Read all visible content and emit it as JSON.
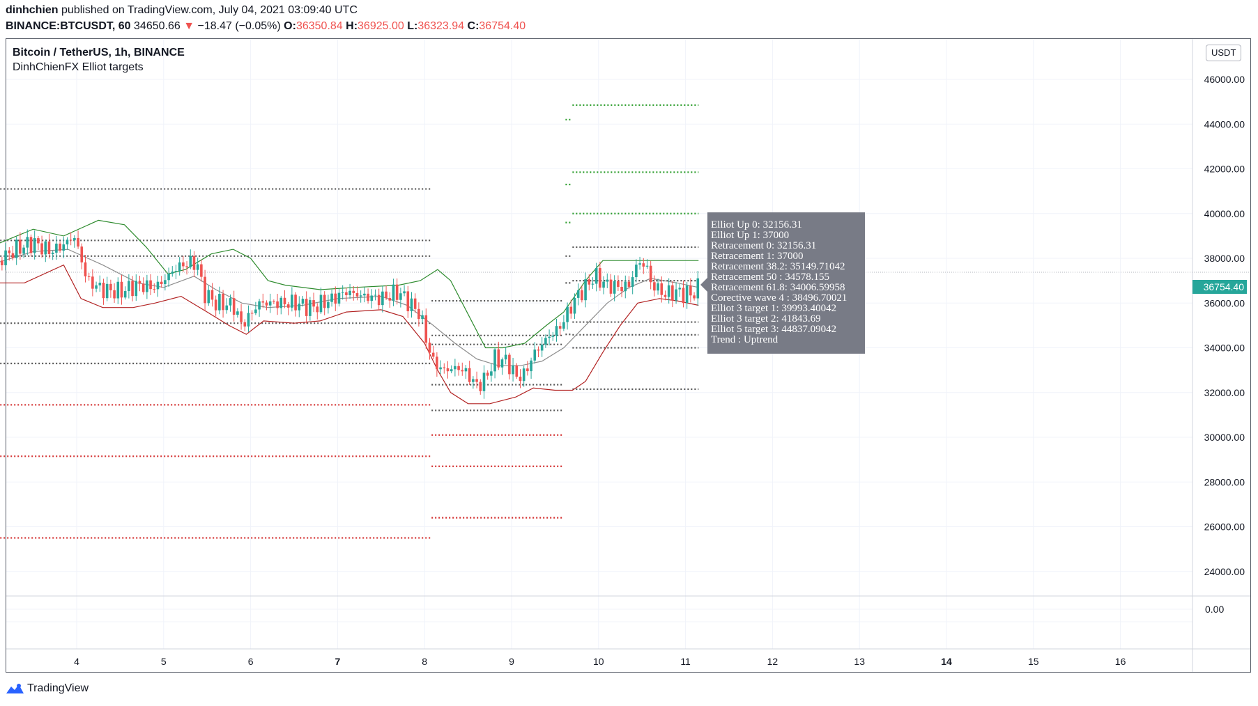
{
  "header": {
    "author": "dinhchien",
    "published": "published on TradingView.com, July 04, 2021 03:09:40 UTC",
    "symbol": "BINANCE:BTCUSDT, 60",
    "last": "34650.66",
    "change_arrow": "▼",
    "change": "−18.47 (−0.05%)",
    "o_label": "O:",
    "o_val": "36350.84",
    "h_label": "H:",
    "h_val": "36925.00",
    "l_label": "L:",
    "l_val": "36323.94",
    "c_label": "C:",
    "c_val": "36754.40"
  },
  "legend": {
    "title": "Bitcoin / TetherUS, 1h, BINANCE",
    "indicator": "DinhChienFX Elliot targets"
  },
  "unit_button": "USDT",
  "price_tag": "36754.40",
  "tooltip": [
    "Elliot Up 0: 32156.31",
    "Elliot Up 1: 37000",
    "Retracement 0: 32156.31",
    "Retracement 1: 37000",
    "Retracement 38.2: 35149.71042",
    "Retracement 50  : 34578.155",
    "Retracement 61.8: 34006.59958",
    "Corective wave 4 : 38496.70021",
    "Elliot 3 target 1: 39993.40042",
    "Elliot 3 target 2: 41843.69",
    "Elliot 5 target 3: 44837.09042",
    "Trend : Uptrend"
  ],
  "footer": {
    "brand": "TradingView"
  },
  "colors": {
    "up": "#26a69a",
    "down": "#ef5350",
    "bb_upper": "#2e8b2e",
    "bb_lower": "#b22222",
    "bb_basis": "#8c8c8c",
    "grid": "#f0f3fa",
    "level_gray": "#555555",
    "level_red": "#d32f2f",
    "level_green": "#2e9e2e"
  },
  "chart_data": {
    "type": "candlestick",
    "title": "Bitcoin / TetherUS, 1h, BINANCE",
    "ylim": [
      22800,
      47400
    ],
    "y_ticks": [
      46000,
      44000,
      42000,
      40000,
      38000,
      36000,
      34000,
      32000,
      30000,
      28000,
      26000,
      24000
    ],
    "sub_pane_tick": "0.00",
    "x_ticks": [
      {
        "label": "4",
        "day": 4
      },
      {
        "label": "5",
        "day": 5
      },
      {
        "label": "6",
        "day": 6
      },
      {
        "label": "7",
        "day": 7,
        "bold": true
      },
      {
        "label": "8",
        "day": 8
      },
      {
        "label": "9",
        "day": 9
      },
      {
        "label": "10",
        "day": 10
      },
      {
        "label": "11",
        "day": 11
      },
      {
        "label": "12",
        "day": 12
      },
      {
        "label": "13",
        "day": 13
      },
      {
        "label": "14",
        "day": 14,
        "bold": true
      },
      {
        "label": "15",
        "day": 15
      },
      {
        "label": "16",
        "day": 16
      }
    ],
    "price_path": [
      [
        3.1,
        37900
      ],
      [
        3.3,
        38400
      ],
      [
        3.5,
        38700
      ],
      [
        3.7,
        38300
      ],
      [
        3.85,
        38600
      ],
      [
        3.97,
        39000
      ],
      [
        4.05,
        38000
      ],
      [
        4.12,
        37000
      ],
      [
        4.3,
        36600
      ],
      [
        4.5,
        36500
      ],
      [
        4.7,
        36800
      ],
      [
        4.9,
        36700
      ],
      [
        5.0,
        37000
      ],
      [
        5.15,
        37600
      ],
      [
        5.3,
        37800
      ],
      [
        5.4,
        37700
      ],
      [
        5.45,
        36500
      ],
      [
        5.6,
        36000
      ],
      [
        5.8,
        35900
      ],
      [
        5.9,
        35000
      ],
      [
        6.0,
        35500
      ],
      [
        6.1,
        36000
      ],
      [
        6.3,
        36000
      ],
      [
        6.5,
        36000
      ],
      [
        6.7,
        35800
      ],
      [
        6.9,
        36100
      ],
      [
        7.1,
        36500
      ],
      [
        7.3,
        36300
      ],
      [
        7.5,
        36200
      ],
      [
        7.7,
        36500
      ],
      [
        7.85,
        35900
      ],
      [
        7.95,
        35500
      ],
      [
        8.05,
        33900
      ],
      [
        8.1,
        33400
      ],
      [
        8.2,
        33000
      ],
      [
        8.4,
        33100
      ],
      [
        8.5,
        32800
      ],
      [
        8.6,
        32300
      ],
      [
        8.7,
        32600
      ],
      [
        8.8,
        33500
      ],
      [
        8.95,
        33400
      ],
      [
        9.05,
        32700
      ],
      [
        9.15,
        32800
      ],
      [
        9.25,
        33700
      ],
      [
        9.4,
        34400
      ],
      [
        9.55,
        34900
      ],
      [
        9.65,
        35600
      ],
      [
        9.75,
        36300
      ],
      [
        9.85,
        36700
      ],
      [
        9.95,
        37200
      ],
      [
        10.1,
        36800
      ],
      [
        10.25,
        36700
      ],
      [
        10.35,
        36800
      ],
      [
        10.45,
        37800
      ],
      [
        10.55,
        37700
      ],
      [
        10.6,
        36900
      ],
      [
        10.75,
        36400
      ],
      [
        10.9,
        36500
      ],
      [
        11.0,
        36400
      ],
      [
        11.1,
        36450
      ],
      [
        11.15,
        36754.4
      ]
    ],
    "bb_upper": [
      [
        3.0,
        38500
      ],
      [
        3.5,
        39300
      ],
      [
        3.85,
        39000
      ],
      [
        4.25,
        39700
      ],
      [
        4.55,
        39500
      ],
      [
        4.8,
        38500
      ],
      [
        5.05,
        37300
      ],
      [
        5.25,
        37500
      ],
      [
        5.55,
        38200
      ],
      [
        5.8,
        38400
      ],
      [
        6.0,
        38000
      ],
      [
        6.2,
        37000
      ],
      [
        6.4,
        36800
      ],
      [
        6.8,
        36600
      ],
      [
        7.2,
        36700
      ],
      [
        7.7,
        36800
      ],
      [
        7.95,
        37000
      ],
      [
        8.15,
        37500
      ],
      [
        8.3,
        37000
      ],
      [
        8.5,
        35500
      ],
      [
        8.7,
        34000
      ],
      [
        8.9,
        34000
      ],
      [
        9.15,
        34200
      ],
      [
        9.4,
        35000
      ],
      [
        9.6,
        35600
      ],
      [
        9.85,
        37000
      ],
      [
        10.05,
        37900
      ],
      [
        10.3,
        37900
      ],
      [
        10.6,
        37900
      ],
      [
        11.15,
        37900
      ]
    ],
    "bb_basis": [
      [
        3.0,
        37700
      ],
      [
        3.5,
        38300
      ],
      [
        3.9,
        38400
      ],
      [
        4.3,
        37700
      ],
      [
        4.7,
        36900
      ],
      [
        5.0,
        36700
      ],
      [
        5.35,
        37200
      ],
      [
        5.6,
        36600
      ],
      [
        5.9,
        36000
      ],
      [
        6.2,
        35800
      ],
      [
        6.6,
        35900
      ],
      [
        7.0,
        36200
      ],
      [
        7.5,
        36300
      ],
      [
        7.8,
        35900
      ],
      [
        8.1,
        35000
      ],
      [
        8.35,
        34200
      ],
      [
        8.6,
        33500
      ],
      [
        8.85,
        33200
      ],
      [
        9.1,
        33200
      ],
      [
        9.35,
        33400
      ],
      [
        9.6,
        34000
      ],
      [
        9.85,
        35000
      ],
      [
        10.1,
        36000
      ],
      [
        10.35,
        36700
      ],
      [
        10.6,
        37100
      ],
      [
        10.9,
        36900
      ],
      [
        11.15,
        36700
      ]
    ],
    "bb_lower": [
      [
        3.0,
        36900
      ],
      [
        3.4,
        36900
      ],
      [
        3.85,
        37700
      ],
      [
        4.05,
        36200
      ],
      [
        4.3,
        35800
      ],
      [
        4.65,
        35800
      ],
      [
        4.9,
        36000
      ],
      [
        5.2,
        36300
      ],
      [
        5.5,
        35600
      ],
      [
        5.75,
        35000
      ],
      [
        5.95,
        34600
      ],
      [
        6.15,
        35200
      ],
      [
        6.5,
        35100
      ],
      [
        6.8,
        35200
      ],
      [
        7.1,
        35600
      ],
      [
        7.5,
        35700
      ],
      [
        7.75,
        35400
      ],
      [
        8.0,
        34200
      ],
      [
        8.15,
        33000
      ],
      [
        8.3,
        32000
      ],
      [
        8.5,
        31500
      ],
      [
        8.75,
        31500
      ],
      [
        9.05,
        31800
      ],
      [
        9.25,
        32200
      ],
      [
        9.5,
        32100
      ],
      [
        9.7,
        32100
      ],
      [
        9.85,
        32500
      ],
      [
        10.05,
        33800
      ],
      [
        10.25,
        35000
      ],
      [
        10.45,
        36000
      ],
      [
        10.7,
        36200
      ],
      [
        10.9,
        36100
      ],
      [
        11.15,
        35900
      ]
    ],
    "levels": [
      {
        "color": "gray",
        "price": 41100,
        "from": 3.0,
        "to": 8.07
      },
      {
        "color": "gray",
        "price": 38800,
        "from": 3.0,
        "to": 8.07
      },
      {
        "color": "gray",
        "price": 38100,
        "from": 3.0,
        "to": 8.07
      },
      {
        "color": "gray",
        "price": 35100,
        "from": 3.0,
        "to": 8.07
      },
      {
        "color": "gray",
        "price": 33300,
        "from": 3.0,
        "to": 8.07
      },
      {
        "color": "red",
        "price": 31450,
        "from": 3.0,
        "to": 8.07
      },
      {
        "color": "red",
        "price": 29150,
        "from": 3.0,
        "to": 8.07
      },
      {
        "color": "red",
        "price": 25500,
        "from": 3.0,
        "to": 8.07
      },
      {
        "color": "gray",
        "price": 36100,
        "from": 8.08,
        "to": 9.6
      },
      {
        "color": "gray",
        "price": 34550,
        "from": 8.08,
        "to": 9.6
      },
      {
        "color": "gray",
        "price": 34150,
        "from": 8.08,
        "to": 9.6
      },
      {
        "color": "gray",
        "price": 32350,
        "from": 8.08,
        "to": 9.6
      },
      {
        "color": "gray",
        "price": 31200,
        "from": 8.08,
        "to": 9.6
      },
      {
        "color": "red",
        "price": 30100,
        "from": 8.08,
        "to": 9.6
      },
      {
        "color": "red",
        "price": 28700,
        "from": 8.08,
        "to": 9.6
      },
      {
        "color": "red",
        "price": 26400,
        "from": 8.08,
        "to": 9.6
      },
      {
        "color": "green",
        "price": 44200,
        "from": 9.62,
        "to": 9.68
      },
      {
        "color": "green",
        "price": 41300,
        "from": 9.62,
        "to": 9.68
      },
      {
        "color": "green",
        "price": 39600,
        "from": 9.62,
        "to": 9.68
      },
      {
        "color": "gray",
        "price": 38100,
        "from": 9.62,
        "to": 9.68
      },
      {
        "color": "gray",
        "price": 36900,
        "from": 9.62,
        "to": 9.68
      },
      {
        "color": "gray",
        "price": 34600,
        "from": 9.62,
        "to": 9.68
      },
      {
        "color": "green",
        "price": 44850,
        "from": 9.7,
        "to": 11.15
      },
      {
        "color": "green",
        "price": 41850,
        "from": 9.7,
        "to": 11.15
      },
      {
        "color": "green",
        "price": 40000,
        "from": 9.7,
        "to": 11.15
      },
      {
        "color": "gray",
        "price": 38500,
        "from": 9.7,
        "to": 11.15
      },
      {
        "color": "gray",
        "price": 37000,
        "from": 9.7,
        "to": 11.15
      },
      {
        "color": "gray",
        "price": 35150,
        "from": 9.7,
        "to": 11.15
      },
      {
        "color": "gray",
        "price": 34580,
        "from": 9.7,
        "to": 11.15
      },
      {
        "color": "gray",
        "price": 34000,
        "from": 9.7,
        "to": 11.15
      },
      {
        "color": "gray",
        "price": 32150,
        "from": 9.7,
        "to": 11.15
      }
    ]
  }
}
